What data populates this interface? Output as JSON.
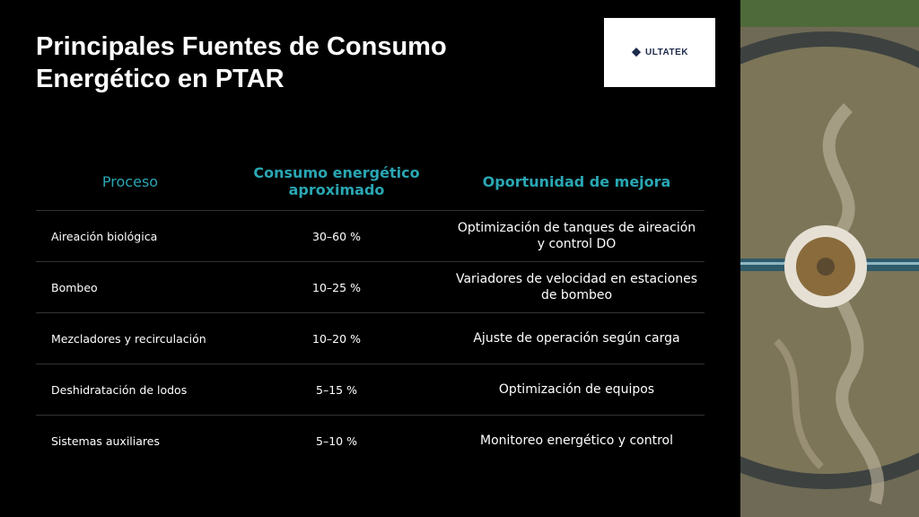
{
  "header": {
    "title": "Principales Fuentes de Consumo Energético en PTAR"
  },
  "logo": {
    "text": "ULTATEK"
  },
  "table": {
    "headers": [
      "Proceso",
      "Consumo energético aproximado",
      "Oportunidad de mejora"
    ],
    "rows": [
      [
        "Aireación biológica",
        "30–60 %",
        "Optimización de tanques de aireación y control DO"
      ],
      [
        "Bombeo",
        "10–25 %",
        "Variadores de velocidad en estaciones de bombeo"
      ],
      [
        "Mezcladores y recirculación",
        "10–20 %",
        "Ajuste de operación según carga"
      ],
      [
        "Deshidratación de lodos",
        "5–15 %",
        "Optimización de equipos"
      ],
      [
        "Sistemas auxiliares",
        "5–10 %",
        "Monitoreo energético y control"
      ]
    ]
  }
}
